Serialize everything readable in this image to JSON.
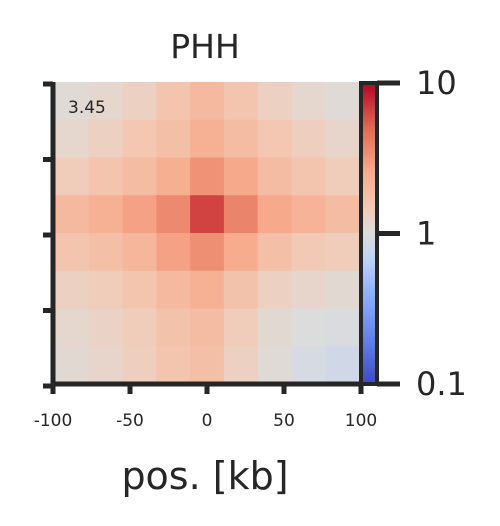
{
  "chart_data": {
    "type": "heatmap",
    "title": "PHH",
    "xlabel": "pos. [kb]",
    "ylabel": "",
    "x_range": [
      -100,
      100
    ],
    "x_tick_labels": [
      "-100",
      "-50",
      "0",
      "50",
      "100"
    ],
    "y_tick_labels": [
      "",
      "",
      "",
      "",
      ""
    ],
    "colorbar": {
      "scale": "log",
      "range": [
        0.1,
        10
      ],
      "tick_labels": [
        "0.1",
        "1",
        "10"
      ],
      "colormap": "coolwarm"
    },
    "annotation": "3.45",
    "grid": false,
    "matrix": [
      [
        1.05,
        1.15,
        1.3,
        1.6,
        2.0,
        1.6,
        1.3,
        1.15,
        1.05
      ],
      [
        1.15,
        1.3,
        1.55,
        1.8,
        2.3,
        1.9,
        1.55,
        1.35,
        1.2
      ],
      [
        1.4,
        1.6,
        1.9,
        2.4,
        3.3,
        2.6,
        1.9,
        1.6,
        1.4
      ],
      [
        2.0,
        2.3,
        2.8,
        3.6,
        6.5,
        3.8,
        2.6,
        2.2,
        1.9
      ],
      [
        1.6,
        1.8,
        2.1,
        2.8,
        3.4,
        2.5,
        1.8,
        1.5,
        1.4
      ],
      [
        1.3,
        1.4,
        1.6,
        2.0,
        2.3,
        1.7,
        1.3,
        1.2,
        1.1
      ],
      [
        1.15,
        1.25,
        1.4,
        1.7,
        1.9,
        1.4,
        1.1,
        1.0,
        0.95
      ],
      [
        1.1,
        1.2,
        1.35,
        1.6,
        1.8,
        1.3,
        1.05,
        0.92,
        0.85
      ]
    ]
  }
}
